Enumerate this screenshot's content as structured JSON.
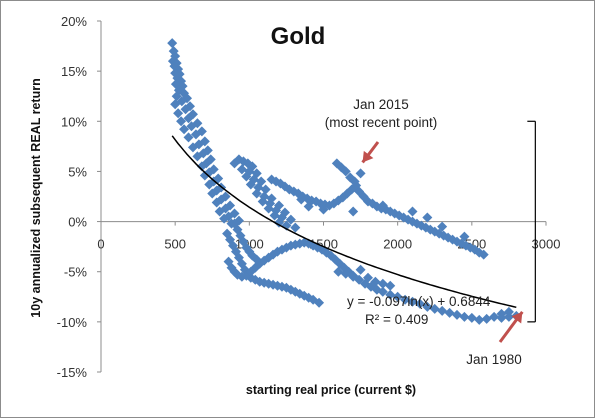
{
  "chart_data": {
    "type": "scatter",
    "title": "Gold",
    "xlabel": "starting real price (current $)",
    "ylabel": "10y annualized subsequent REAL  return",
    "xlim": [
      0,
      3000
    ],
    "ylim": [
      -0.15,
      0.2
    ],
    "x_ticks": [
      0,
      500,
      1000,
      1500,
      2000,
      2500,
      3000
    ],
    "x_tick_labels": [
      "0",
      "500",
      "1000",
      "1500",
      "2000",
      "2500",
      "3000"
    ],
    "y_ticks": [
      -0.15,
      -0.1,
      -0.05,
      0.0,
      0.05,
      0.1,
      0.15,
      0.2
    ],
    "y_tick_labels": [
      "-15%",
      "-10%",
      "-5%",
      "0%",
      "5%",
      "10%",
      "15%",
      "20%"
    ],
    "grid": false,
    "legend": "none",
    "marker_color": "#4f81bd",
    "trendline": {
      "type": "logarithmic",
      "a": -0.097,
      "b": 0.6844,
      "x_range": [
        480,
        2800
      ],
      "equation": "y = -0.097ln(x) + 0.6844",
      "r2": "R² = 0.409"
    },
    "range_bar": {
      "x": 2800,
      "y_from": -0.1,
      "y_to": 0.1
    },
    "annotations": [
      {
        "lines": [
          "Jan 2015",
          "(most recent point)"
        ],
        "target": [
          1750,
          0.048
        ]
      },
      {
        "lines": [
          "Jan 1980"
        ],
        "target": [
          2800,
          -0.094
        ]
      }
    ],
    "series": [
      {
        "points": [
          [
            480,
            0.178
          ],
          [
            490,
            0.17
          ],
          [
            500,
            0.165
          ],
          [
            485,
            0.16
          ],
          [
            510,
            0.158
          ],
          [
            495,
            0.155
          ],
          [
            520,
            0.152
          ],
          [
            500,
            0.148
          ],
          [
            530,
            0.147
          ],
          [
            515,
            0.143
          ],
          [
            540,
            0.14
          ],
          [
            505,
            0.137
          ],
          [
            550,
            0.135
          ],
          [
            525,
            0.131
          ],
          [
            560,
            0.128
          ],
          [
            510,
            0.125
          ],
          [
            580,
            0.123
          ],
          [
            545,
            0.12
          ],
          [
            500,
            0.117
          ],
          [
            600,
            0.115
          ],
          [
            570,
            0.112
          ],
          [
            520,
            0.108
          ],
          [
            620,
            0.107
          ],
          [
            590,
            0.103
          ],
          [
            540,
            0.1
          ],
          [
            650,
            0.098
          ],
          [
            610,
            0.095
          ],
          [
            560,
            0.092
          ],
          [
            680,
            0.09
          ],
          [
            640,
            0.087
          ],
          [
            590,
            0.084
          ],
          [
            700,
            0.08
          ],
          [
            660,
            0.077
          ],
          [
            620,
            0.074
          ],
          [
            720,
            0.071
          ],
          [
            690,
            0.068
          ],
          [
            650,
            0.065
          ],
          [
            740,
            0.062
          ],
          [
            710,
            0.058
          ],
          [
            680,
            0.055
          ],
          [
            760,
            0.052
          ],
          [
            730,
            0.049
          ],
          [
            700,
            0.046
          ],
          [
            790,
            0.043
          ],
          [
            760,
            0.04
          ],
          [
            730,
            0.037
          ],
          [
            810,
            0.034
          ],
          [
            780,
            0.031
          ],
          [
            750,
            0.028
          ],
          [
            840,
            0.025
          ],
          [
            810,
            0.022
          ],
          [
            780,
            0.019
          ],
          [
            870,
            0.016
          ],
          [
            840,
            0.013
          ],
          [
            800,
            0.01
          ],
          [
            900,
            0.008
          ],
          [
            860,
            0.005
          ],
          [
            830,
            0.003
          ],
          [
            930,
            0.001
          ],
          [
            880,
            -0.002
          ],
          [
            900,
            0.058
          ],
          [
            930,
            0.062
          ],
          [
            960,
            0.06
          ],
          [
            990,
            0.058
          ],
          [
            1020,
            0.055
          ],
          [
            950,
            0.052
          ],
          [
            1000,
            0.05
          ],
          [
            1050,
            0.048
          ],
          [
            980,
            0.045
          ],
          [
            1030,
            0.042
          ],
          [
            1080,
            0.04
          ],
          [
            1010,
            0.037
          ],
          [
            1060,
            0.034
          ],
          [
            1110,
            0.032
          ],
          [
            1050,
            0.028
          ],
          [
            1100,
            0.025
          ],
          [
            1150,
            0.023
          ],
          [
            1090,
            0.02
          ],
          [
            1140,
            0.018
          ],
          [
            1200,
            0.016
          ],
          [
            1130,
            0.013
          ],
          [
            1180,
            0.011
          ],
          [
            1240,
            0.009
          ],
          [
            1170,
            0.006
          ],
          [
            1220,
            0.004
          ],
          [
            1280,
            0.002
          ],
          [
            1200,
            -0.001
          ],
          [
            1250,
            -0.004
          ],
          [
            1310,
            -0.006
          ],
          [
            1150,
            0.042
          ],
          [
            1180,
            0.04
          ],
          [
            1210,
            0.038
          ],
          [
            1240,
            0.035
          ],
          [
            1270,
            0.032
          ],
          [
            1300,
            0.03
          ],
          [
            1330,
            0.028
          ],
          [
            1360,
            0.025
          ],
          [
            1390,
            0.023
          ],
          [
            1420,
            0.021
          ],
          [
            1450,
            0.02
          ],
          [
            1480,
            0.018
          ],
          [
            1510,
            0.017
          ],
          [
            1540,
            0.016
          ],
          [
            1570,
            0.018
          ],
          [
            1600,
            0.021
          ],
          [
            1630,
            0.024
          ],
          [
            1660,
            0.028
          ],
          [
            1690,
            0.032
          ],
          [
            1720,
            0.036
          ],
          [
            1750,
            0.048
          ],
          [
            1590,
            0.058
          ],
          [
            1620,
            0.054
          ],
          [
            1650,
            0.05
          ],
          [
            1680,
            0.044
          ],
          [
            1710,
            0.04
          ],
          [
            1740,
            0.03
          ],
          [
            1770,
            0.025
          ],
          [
            1800,
            0.02
          ],
          [
            1830,
            0.018
          ],
          [
            1860,
            0.015
          ],
          [
            1890,
            0.013
          ],
          [
            1920,
            0.012
          ],
          [
            1950,
            0.01
          ],
          [
            1980,
            0.008
          ],
          [
            2010,
            0.006
          ],
          [
            2040,
            0.004
          ],
          [
            2070,
            0.002
          ],
          [
            2100,
            0.0
          ],
          [
            2130,
            -0.002
          ],
          [
            2160,
            -0.004
          ],
          [
            2190,
            -0.006
          ],
          [
            2220,
            -0.008
          ],
          [
            2250,
            -0.01
          ],
          [
            2280,
            -0.012
          ],
          [
            2310,
            -0.014
          ],
          [
            2340,
            -0.016
          ],
          [
            2370,
            -0.018
          ],
          [
            2400,
            -0.02
          ],
          [
            2430,
            -0.022
          ],
          [
            2460,
            -0.024
          ],
          [
            2490,
            -0.026
          ],
          [
            2520,
            -0.028
          ],
          [
            2550,
            -0.031
          ],
          [
            2580,
            -0.033
          ],
          [
            2450,
            -0.015
          ],
          [
            2300,
            -0.005
          ],
          [
            2200,
            0.004
          ],
          [
            2100,
            0.01
          ],
          [
            1900,
            0.016
          ],
          [
            1700,
            0.01
          ],
          [
            1500,
            0.012
          ],
          [
            1400,
            0.015
          ],
          [
            1350,
            0.022
          ],
          [
            850,
            -0.012
          ],
          [
            870,
            -0.018
          ],
          [
            890,
            -0.024
          ],
          [
            910,
            -0.03
          ],
          [
            930,
            -0.036
          ],
          [
            950,
            -0.042
          ],
          [
            970,
            -0.048
          ],
          [
            990,
            -0.052
          ],
          [
            1010,
            -0.056
          ],
          [
            1040,
            -0.058
          ],
          [
            1070,
            -0.06
          ],
          [
            1100,
            -0.061
          ],
          [
            1130,
            -0.062
          ],
          [
            1160,
            -0.063
          ],
          [
            1190,
            -0.064
          ],
          [
            1220,
            -0.065
          ],
          [
            1250,
            -0.066
          ],
          [
            1280,
            -0.068
          ],
          [
            1310,
            -0.07
          ],
          [
            1340,
            -0.072
          ],
          [
            1370,
            -0.074
          ],
          [
            1400,
            -0.076
          ],
          [
            1430,
            -0.078
          ],
          [
            1470,
            -0.081
          ],
          [
            860,
            -0.04
          ],
          [
            880,
            -0.046
          ],
          [
            900,
            -0.05
          ],
          [
            920,
            -0.053
          ],
          [
            950,
            -0.055
          ],
          [
            980,
            -0.054
          ],
          [
            1010,
            -0.05
          ],
          [
            1040,
            -0.046
          ],
          [
            1070,
            -0.042
          ],
          [
            1100,
            -0.039
          ],
          [
            1130,
            -0.036
          ],
          [
            1160,
            -0.033
          ],
          [
            1190,
            -0.03
          ],
          [
            1220,
            -0.028
          ],
          [
            1250,
            -0.026
          ],
          [
            1280,
            -0.024
          ],
          [
            1310,
            -0.023
          ],
          [
            1340,
            -0.022
          ],
          [
            1370,
            -0.021
          ],
          [
            1400,
            -0.022
          ],
          [
            1430,
            -0.024
          ],
          [
            1460,
            -0.026
          ],
          [
            1490,
            -0.028
          ],
          [
            1520,
            -0.031
          ],
          [
            1550,
            -0.034
          ],
          [
            1580,
            -0.038
          ],
          [
            1610,
            -0.042
          ],
          [
            1640,
            -0.046
          ],
          [
            1670,
            -0.05
          ],
          [
            1700,
            -0.054
          ],
          [
            1740,
            -0.058
          ],
          [
            1780,
            -0.062
          ],
          [
            1820,
            -0.065
          ],
          [
            1860,
            -0.068
          ],
          [
            1900,
            -0.07
          ],
          [
            1950,
            -0.073
          ],
          [
            2000,
            -0.075
          ],
          [
            2050,
            -0.078
          ],
          [
            2100,
            -0.08
          ],
          [
            2150,
            -0.082
          ],
          [
            2200,
            -0.085
          ],
          [
            2250,
            -0.087
          ],
          [
            2300,
            -0.089
          ],
          [
            2350,
            -0.091
          ],
          [
            2400,
            -0.093
          ],
          [
            2450,
            -0.095
          ],
          [
            2500,
            -0.096
          ],
          [
            2550,
            -0.098
          ],
          [
            2600,
            -0.097
          ],
          [
            2650,
            -0.095
          ],
          [
            2700,
            -0.096
          ],
          [
            2750,
            -0.095
          ],
          [
            2800,
            -0.094
          ],
          [
            2750,
            -0.09
          ],
          [
            2700,
            -0.092
          ],
          [
            1600,
            -0.05
          ],
          [
            1650,
            -0.052
          ],
          [
            1700,
            -0.055
          ],
          [
            1750,
            -0.048
          ],
          [
            1800,
            -0.056
          ],
          [
            1850,
            -0.06
          ],
          [
            1900,
            -0.062
          ],
          [
            1950,
            -0.064
          ],
          [
            900,
            -0.002
          ],
          [
            920,
            -0.008
          ],
          [
            940,
            -0.014
          ],
          [
            960,
            -0.02
          ],
          [
            980,
            -0.026
          ],
          [
            1000,
            -0.03
          ],
          [
            1020,
            -0.034
          ],
          [
            1050,
            -0.038
          ]
        ]
      }
    ]
  }
}
